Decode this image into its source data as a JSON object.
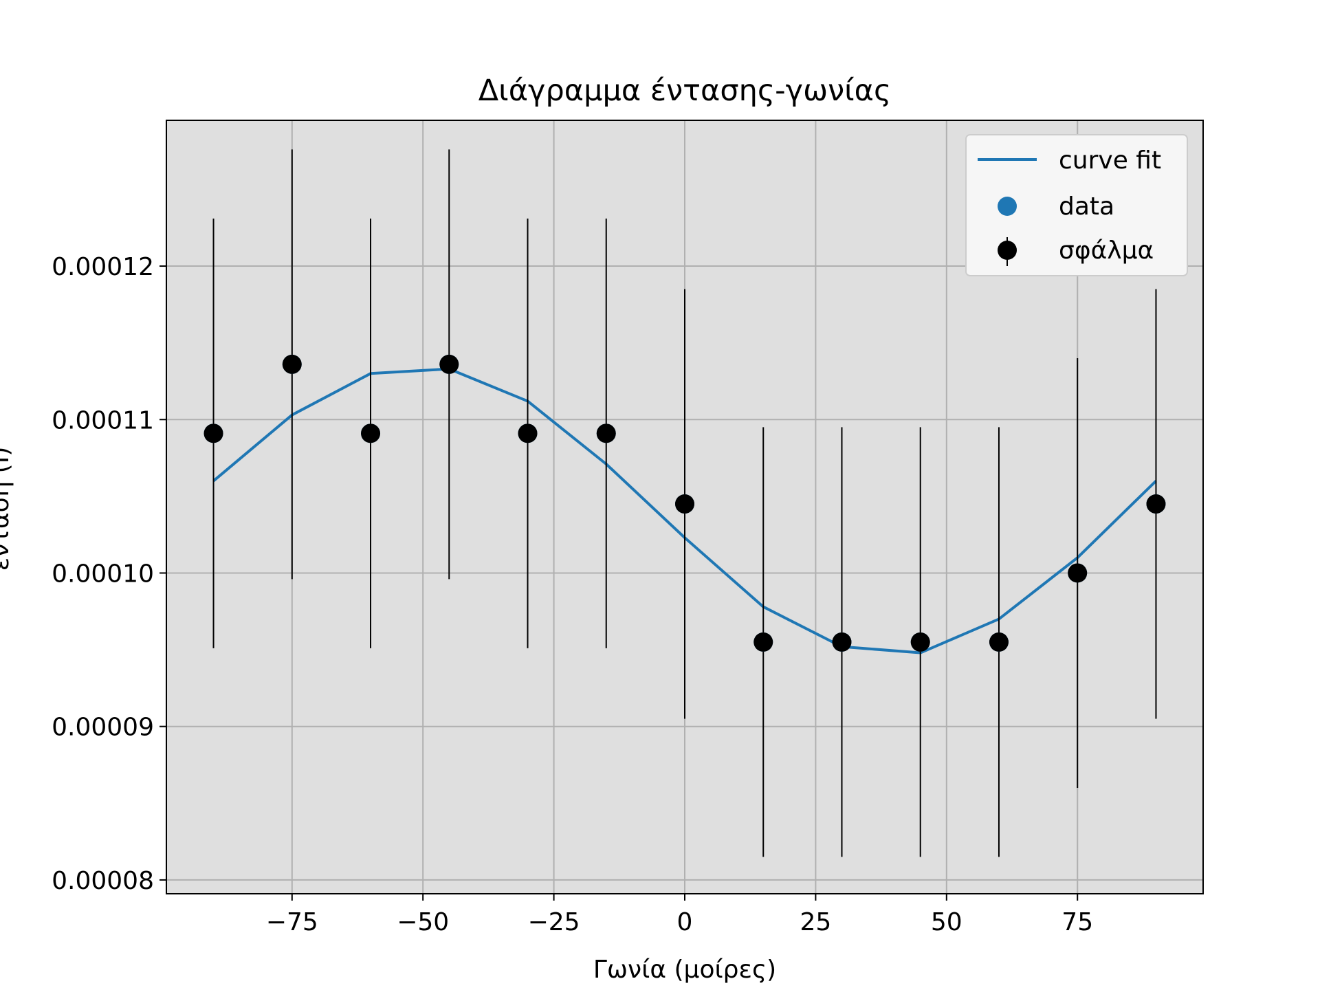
{
  "chart_data": {
    "type": "scatter",
    "title": "Διάγραμμα έντασης-γωνίας",
    "xlabel": "Γωνία (μοίρες)",
    "ylabel": "ένταση (I)",
    "xlim": [
      -99,
      99
    ],
    "ylim": [
      7.91e-05,
      0.0001295
    ],
    "x_ticks": [
      -75,
      -50,
      -25,
      0,
      25,
      50,
      75
    ],
    "x_tick_labels": [
      "−75",
      "−50",
      "−25",
      "0",
      "25",
      "50",
      "75"
    ],
    "y_ticks": [
      8e-05,
      9e-05,
      0.0001,
      0.00011,
      0.00012
    ],
    "y_tick_labels": [
      "0.00008",
      "0.00009",
      "0.00010",
      "0.00011",
      "0.00012"
    ],
    "grid": true,
    "legend_position": "top-right",
    "background_color": "#dfdfdf",
    "series": [
      {
        "name": "curve fit",
        "kind": "line",
        "color": "#1f77b4",
        "x": [
          -90,
          -75,
          -60,
          -45,
          -30,
          -15,
          0,
          15,
          30,
          45,
          60,
          75,
          90
        ],
        "y": [
          0.000106,
          0.0001103,
          0.000113,
          0.0001133,
          0.0001112,
          0.0001071,
          0.0001023,
          9.78e-05,
          9.52e-05,
          9.48e-05,
          9.7e-05,
          0.000101,
          0.000106
        ]
      },
      {
        "name": "data",
        "kind": "scatter",
        "color": "#1f77b4",
        "x": [
          -90,
          -75,
          -60,
          -45,
          -30,
          -15,
          0,
          15,
          30,
          45,
          60,
          75,
          90
        ],
        "y": [
          0.0001091,
          0.0001136,
          0.0001091,
          0.0001136,
          0.0001091,
          0.0001091,
          0.0001045,
          9.55e-05,
          9.55e-05,
          9.55e-05,
          9.55e-05,
          0.0001,
          0.0001045
        ]
      },
      {
        "name": "σφάλμα",
        "kind": "errorbar",
        "color": "#000000",
        "x": [
          -90,
          -75,
          -60,
          -45,
          -30,
          -15,
          0,
          15,
          30,
          45,
          60,
          75,
          90
        ],
        "y": [
          0.0001091,
          0.0001136,
          0.0001091,
          0.0001136,
          0.0001091,
          0.0001091,
          0.0001045,
          9.55e-05,
          9.55e-05,
          9.55e-05,
          9.55e-05,
          0.0001,
          0.0001045
        ],
        "yerr": [
          1.4e-05,
          1.4e-05,
          1.4e-05,
          1.4e-05,
          1.4e-05,
          1.4e-05,
          1.4e-05,
          1.4e-05,
          1.4e-05,
          1.4e-05,
          1.4e-05,
          1.4e-05,
          1.4e-05
        ]
      }
    ]
  }
}
